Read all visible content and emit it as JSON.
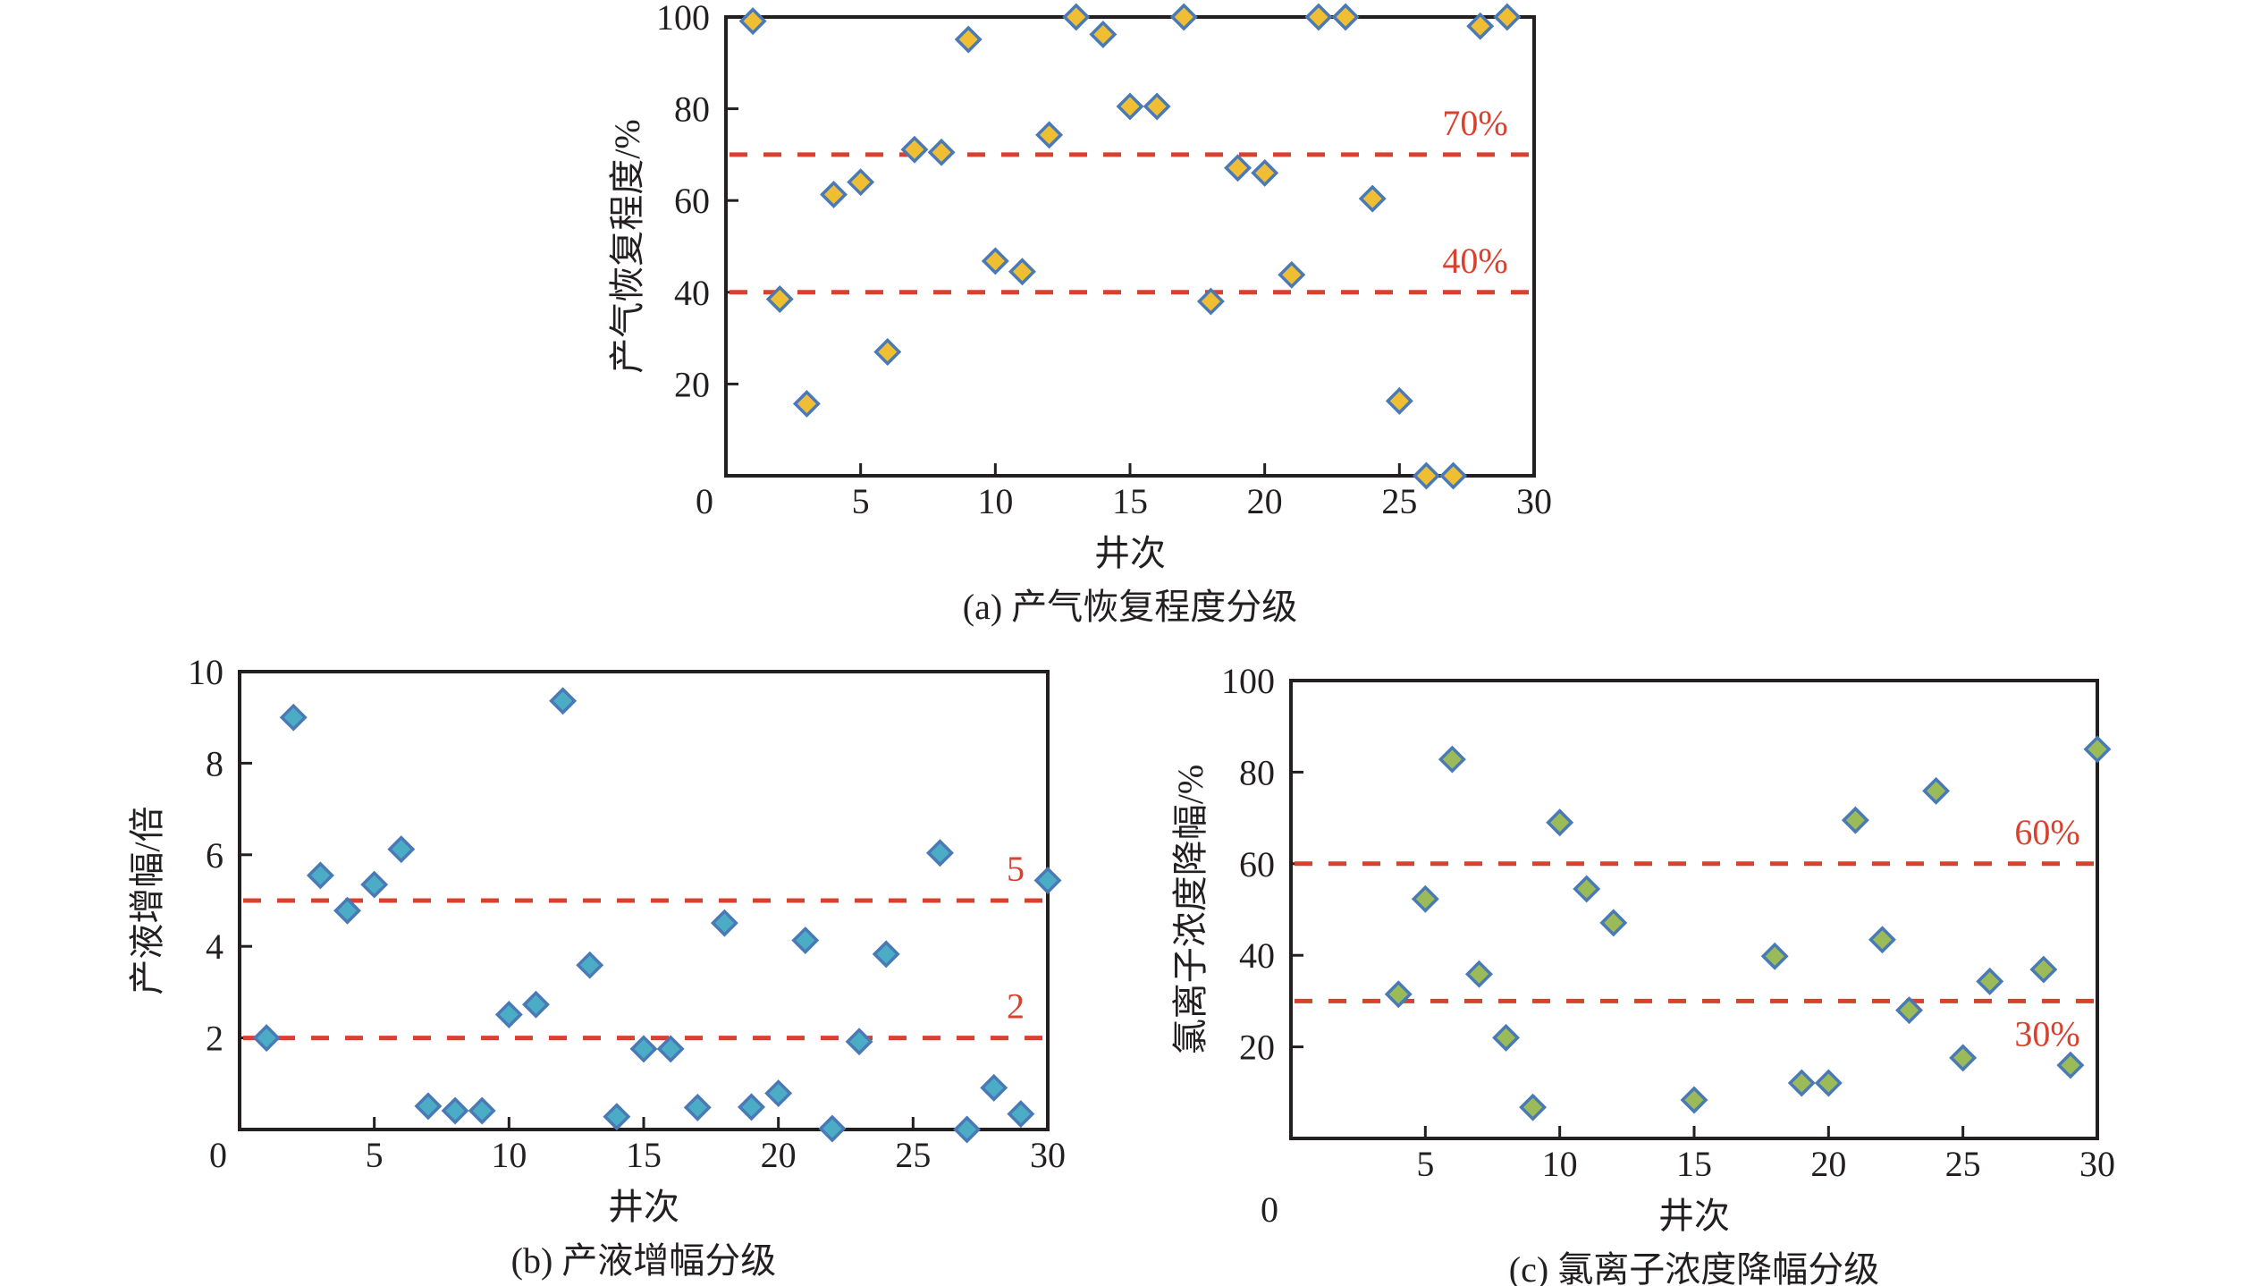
{
  "colors": {
    "threshold": "#D9412F",
    "marker_stroke": "#4A7AB5",
    "gas_marker_fill": "#F0BE32",
    "liquid_marker_fill": "#4BACC6",
    "chloride_marker_fill": "#9BBB59",
    "axis": "#231F20"
  },
  "chart_data": [
    {
      "id": "a",
      "type": "scatter",
      "marker": "diamond",
      "title": "(a) 产气恢复程度分级",
      "xlabel": "井次",
      "ylabel": "产气恢复程度/%",
      "xlim": [
        0,
        30
      ],
      "ylim": [
        0,
        100
      ],
      "xticks": [
        0,
        5,
        10,
        15,
        20,
        25,
        30
      ],
      "yticks": [
        20,
        40,
        60,
        80,
        100
      ],
      "grid": false,
      "thresholds": [
        {
          "value": 70,
          "label": "70%"
        },
        {
          "value": 40,
          "label": "40%"
        }
      ],
      "series": [
        {
          "name": "产气恢复程度",
          "x": [
            1,
            2,
            3,
            4,
            5,
            6,
            7,
            8,
            9,
            10,
            11,
            12,
            13,
            14,
            15,
            16,
            17,
            18,
            19,
            20,
            21,
            22,
            23,
            24,
            25,
            26,
            27,
            28,
            29
          ],
          "y": [
            99.1,
            38.5,
            15.7,
            61.3,
            64.0,
            27.0,
            71.1,
            70.5,
            95.1,
            46.8,
            44.5,
            74.3,
            100,
            96.2,
            80.5,
            80.5,
            100,
            38.0,
            67.1,
            66.0,
            43.8,
            100,
            100,
            60.4,
            16.3,
            0,
            0,
            98.0,
            100
          ]
        }
      ]
    },
    {
      "id": "b",
      "type": "scatter",
      "marker": "diamond",
      "title": "(b) 产液增幅分级",
      "xlabel": "井次",
      "ylabel": "产液增幅/倍",
      "xlim": [
        0,
        30
      ],
      "ylim": [
        0,
        10
      ],
      "xticks": [
        0,
        5,
        10,
        15,
        20,
        25,
        30
      ],
      "yticks": [
        2,
        4,
        6,
        8,
        10
      ],
      "grid": false,
      "thresholds": [
        {
          "value": 5,
          "label": "5"
        },
        {
          "value": 2,
          "label": "2"
        }
      ],
      "series": [
        {
          "name": "产液增幅",
          "x": [
            1,
            2,
            3,
            4,
            5,
            6,
            7,
            8,
            9,
            10,
            11,
            12,
            13,
            14,
            15,
            16,
            17,
            18,
            19,
            20,
            21,
            22,
            23,
            24,
            26,
            27,
            28,
            29,
            30
          ],
          "y": [
            2.0,
            9.0,
            5.55,
            4.78,
            5.35,
            6.12,
            0.51,
            0.41,
            0.41,
            2.51,
            2.73,
            9.36,
            3.59,
            0.28,
            1.76,
            1.76,
            0.48,
            4.51,
            0.49,
            0.79,
            4.13,
            0.02,
            1.92,
            3.83,
            6.04,
            0.0,
            0.91,
            0.34,
            5.44
          ]
        }
      ]
    },
    {
      "id": "c",
      "type": "scatter",
      "marker": "diamond",
      "title": "(c) 氯离子浓度降幅分级",
      "xlabel": "井次",
      "ylabel": "氯离子浓度降幅/%",
      "xlim": [
        0,
        30
      ],
      "ylim": [
        0,
        100
      ],
      "xticks": [
        5,
        10,
        15,
        20,
        25,
        30
      ],
      "origin_label": "0",
      "yticks": [
        20,
        40,
        60,
        80,
        100
      ],
      "grid": false,
      "thresholds": [
        {
          "value": 60,
          "label": "60%",
          "label_position": "above"
        },
        {
          "value": 30,
          "label": "30%",
          "label_position": "below"
        }
      ],
      "series": [
        {
          "name": "氯离子浓度降幅",
          "x": [
            4,
            5,
            6,
            7,
            8,
            9,
            10,
            11,
            12,
            15,
            18,
            19,
            20,
            21,
            22,
            23,
            24,
            25,
            26,
            28,
            29,
            30
          ],
          "y": [
            31.5,
            52.3,
            82.8,
            35.9,
            22.0,
            6.8,
            69.0,
            54.5,
            47.1,
            8.4,
            39.8,
            12.1,
            12.1,
            69.5,
            43.4,
            28.0,
            75.9,
            17.6,
            34.3,
            36.9,
            16.0,
            85.0
          ]
        }
      ]
    }
  ]
}
